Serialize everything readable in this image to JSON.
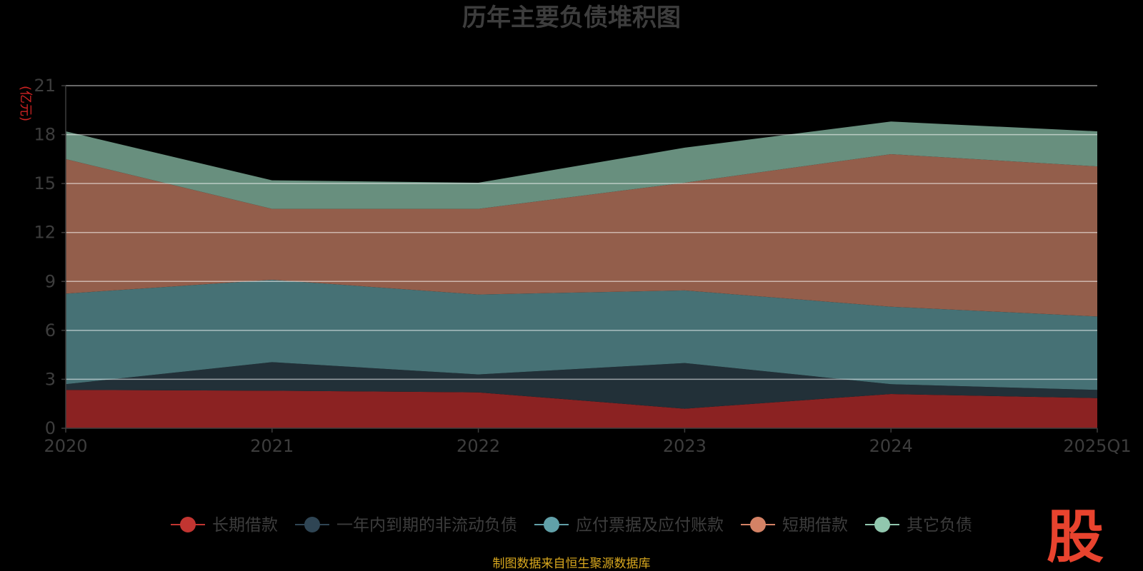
{
  "chart_data": {
    "type": "area",
    "stacked": true,
    "title": "历年主要负债堆积图",
    "unit_label": "(亿元)",
    "categories": [
      "2020",
      "2021",
      "2022",
      "2023",
      "2024",
      "2025Q1"
    ],
    "y_ticks": [
      "0",
      "3",
      "6",
      "9",
      "12",
      "15",
      "18",
      "21"
    ],
    "ylim": [
      0,
      21
    ],
    "grid": true,
    "legend_position": "bottom",
    "series": [
      {
        "name": "长期借款",
        "values": [
          2.35,
          2.3,
          2.2,
          1.2,
          2.1,
          1.85
        ],
        "color": "#8b2222",
        "marker_color": "#c23531"
      },
      {
        "name": "一年内到期的非流动负债",
        "values": [
          0.35,
          1.75,
          1.1,
          2.8,
          0.6,
          0.5
        ],
        "color": "#223038",
        "marker_color": "#2f4554"
      },
      {
        "name": "应付票据及应付账款",
        "values": [
          5.55,
          5.05,
          4.9,
          4.45,
          4.75,
          4.5
        ],
        "color": "#467175",
        "marker_color": "#61a0a8"
      },
      {
        "name": "短期借款",
        "values": [
          8.25,
          4.35,
          5.25,
          6.6,
          9.35,
          9.2
        ],
        "color": "#935e4b",
        "marker_color": "#d48265"
      },
      {
        "name": "其它负债",
        "values": [
          1.7,
          1.75,
          1.6,
          2.15,
          2.0,
          2.15
        ],
        "color": "#688f7e",
        "marker_color": "#91c7ae"
      }
    ]
  },
  "source_note": "制图数据来自恒生聚源数据库",
  "logo_char": "股"
}
